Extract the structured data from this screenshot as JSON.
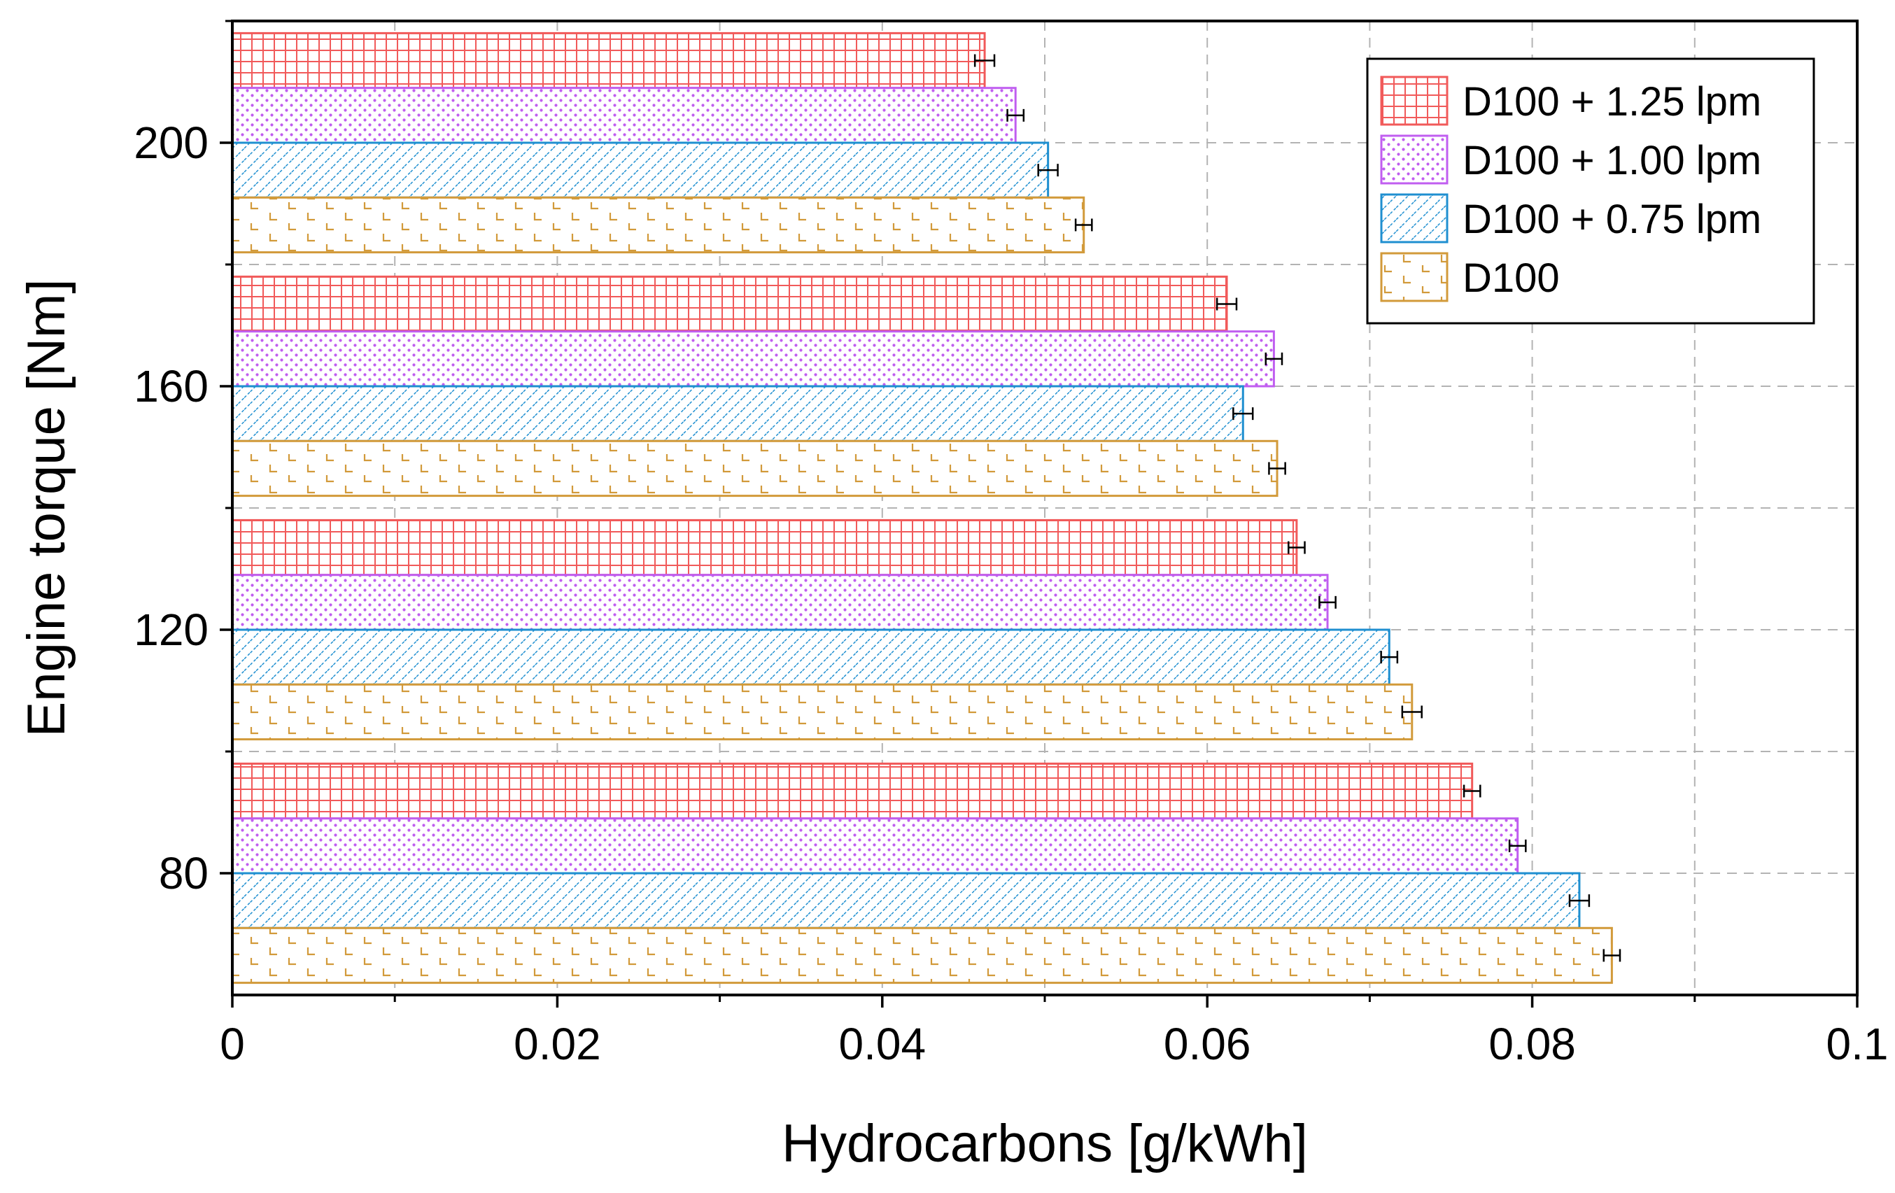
{
  "chart_data": {
    "type": "bar",
    "orientation": "horizontal",
    "title": "",
    "xlabel": "Hydrocarbons [g/kWh]",
    "ylabel": "Engine torque [Nm]",
    "xlim": [
      0,
      0.1
    ],
    "ylim": [
      60,
      220
    ],
    "x_ticks": [
      0,
      0.02,
      0.04,
      0.06,
      0.08,
      0.1
    ],
    "x_tick_labels": [
      "0",
      "0.02",
      "0.04",
      "0.06",
      "0.08",
      "0.1"
    ],
    "y_ticks": [
      80,
      120,
      160,
      200
    ],
    "y_tick_labels": [
      "80",
      "120",
      "160",
      "200"
    ],
    "grid": true,
    "legend_position": "top-right",
    "categories": [
      80,
      120,
      160,
      200
    ],
    "series": [
      {
        "name": "D100 + 1.25 lpm",
        "color": "#f15a5a",
        "pattern": "grid",
        "values": [
          0.0763,
          0.0655,
          0.0612,
          0.0463
        ],
        "errors": [
          0.0005,
          0.0005,
          0.0006,
          0.0006
        ]
      },
      {
        "name": "D100 + 1.00 lpm",
        "color": "#c05ef0",
        "pattern": "dots",
        "values": [
          0.0791,
          0.0674,
          0.0641,
          0.0482
        ],
        "errors": [
          0.0005,
          0.0005,
          0.0005,
          0.0005
        ]
      },
      {
        "name": "D100 + 0.75 lpm",
        "color": "#1f8fd0",
        "pattern": "diagonal",
        "values": [
          0.0829,
          0.0712,
          0.0622,
          0.0502
        ],
        "errors": [
          0.0006,
          0.0005,
          0.0006,
          0.0006
        ]
      },
      {
        "name": "D100",
        "color": "#d29a3a",
        "pattern": "dashes",
        "values": [
          0.0849,
          0.0726,
          0.0643,
          0.0524
        ],
        "errors": [
          0.0005,
          0.0006,
          0.0005,
          0.0005
        ]
      }
    ]
  }
}
